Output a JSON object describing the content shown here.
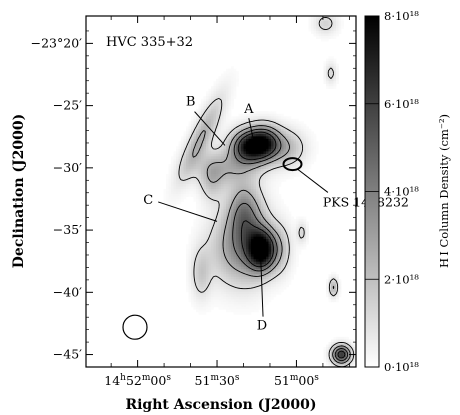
{
  "chart_data": {
    "type": "heatmap",
    "title": "HVC 335+32",
    "xlabel": "Right Ascension (J2000)",
    "ylabel": "Declination (J2000)",
    "colorbar_label": "H I Column Density (cm⁻²)",
    "x_ticks": [
      {
        "label": "14h52m00s",
        "ra_sec_after_14h51m": 60
      },
      {
        "label": "51m30s",
        "ra_sec_after_14h51m": 30
      },
      {
        "label": "51m00s",
        "ra_sec_after_14h51m": 0
      }
    ],
    "x_tick_parts": [
      {
        "parts": [
          {
            "t": "14"
          },
          {
            "t": "h",
            "sup": true
          },
          {
            "t": "52"
          },
          {
            "t": "m",
            "sup": true
          },
          {
            "t": "00"
          },
          {
            "t": "s",
            "sup": true
          }
        ]
      },
      {
        "parts": [
          {
            "t": "51"
          },
          {
            "t": "m",
            "sup": true
          },
          {
            "t": "30"
          },
          {
            "t": "s",
            "sup": true
          }
        ]
      },
      {
        "parts": [
          {
            "t": "51"
          },
          {
            "t": "m",
            "sup": true
          },
          {
            "t": "00"
          },
          {
            "t": "s",
            "sup": true
          }
        ]
      }
    ],
    "y_ticks": [
      {
        "label": "−23°20′",
        "dec_arcmin": -20
      },
      {
        "label": "−25′",
        "dec_arcmin": -25
      },
      {
        "label": "−30′",
        "dec_arcmin": -30
      },
      {
        "label": "−35′",
        "dec_arcmin": -35
      },
      {
        "label": "−40′",
        "dec_arcmin": -40
      },
      {
        "label": "−45′",
        "dec_arcmin": -45
      }
    ],
    "xlim_ra_sec_after_14h51m": [
      79.5,
      -22.5
    ],
    "ylim_dec_arcmin_after_23deg": [
      -17.8,
      -46
    ],
    "colorbar": {
      "range": [
        0,
        8e+18
      ],
      "ticks": [
        {
          "label": "0·10¹⁸",
          "value": 0
        },
        {
          "label": "2·10¹⁸",
          "value": 2e+18
        },
        {
          "label": "4·10¹⁸",
          "value": 4e+18
        },
        {
          "label": "6·10¹⁸",
          "value": 6e+18
        },
        {
          "label": "8·10¹⁸",
          "value": 8e+18
        }
      ],
      "colors": [
        "#ffffff",
        "#000000"
      ]
    },
    "contour_levels": [
      1e+18,
      2.5e+18,
      4e+18,
      5.5e+18
    ],
    "sources": [
      {
        "ra": 18,
        "dec": -28.3,
        "peak": 7e+18,
        "sra": 4.5,
        "sdec": 0.9,
        "rot": 0
      },
      {
        "ra": 12,
        "dec": -28.0,
        "peak": 6e+18,
        "sra": 4.0,
        "sdec": 0.9,
        "rot": 0
      },
      {
        "ra": 36,
        "dec": -27.6,
        "peak": 2.6e+18,
        "sra": 6.0,
        "sdec": 1.1,
        "rot": 20
      },
      {
        "ra": 4,
        "dec": -28.4,
        "peak": 2.2e+18,
        "sra": 5.0,
        "sdec": 1.0,
        "rot": 0
      },
      {
        "ra": 26,
        "dec": -30.0,
        "peak": 2.2e+18,
        "sra": 8.0,
        "sdec": 1.0,
        "rot": 0
      },
      {
        "ra": 32,
        "dec": -31.0,
        "peak": 1.6e+18,
        "sra": 3.0,
        "sdec": 1.2,
        "rot": 0
      },
      {
        "ra": 20,
        "dec": -33.4,
        "peak": 2.6e+18,
        "sra": 4.0,
        "sdec": 1.5,
        "rot": 0
      },
      {
        "ra": 13,
        "dec": -36.6,
        "peak": 8e+18,
        "sra": 3.5,
        "sdec": 1.1,
        "rot": 0
      },
      {
        "ra": 18,
        "dec": -35.8,
        "peak": 3.5e+18,
        "sra": 5.5,
        "sdec": 2.2,
        "rot": 0
      },
      {
        "ra": 26,
        "dec": -36.5,
        "peak": 1.8e+18,
        "sra": 6.0,
        "sdec": 2.0,
        "rot": 0
      },
      {
        "ra": 36,
        "dec": -38.5,
        "peak": 1.6e+18,
        "sra": 2.5,
        "sdec": 1.4,
        "rot": 0
      },
      {
        "ra": 6,
        "dec": -36.5,
        "peak": 1.5e+18,
        "sra": 3.0,
        "sdec": 1.4,
        "rot": 0
      },
      {
        "ra": -2,
        "dec": -35.2,
        "peak": 1.3e+18,
        "sra": 1.3,
        "sdec": 0.6,
        "rot": 0
      },
      {
        "ra": -13,
        "dec": -22.4,
        "peak": 1.3e+18,
        "sra": 1.4,
        "sdec": 0.6,
        "rot": 0
      },
      {
        "ra": -11,
        "dec": -18.4,
        "peak": 1.4e+18,
        "sra": 3.0,
        "sdec": 0.6,
        "rot": 0
      },
      {
        "ra": -14,
        "dec": -39.6,
        "peak": 2.6e+18,
        "sra": 1.1,
        "sdec": 0.5,
        "rot": 0
      },
      {
        "ra": -17,
        "dec": -45.0,
        "peak": 6.5e+18,
        "sra": 2.4,
        "sdec": 0.5,
        "rot": 0
      }
    ],
    "annotations": [
      {
        "label": "A",
        "ra": 18,
        "dec": -25.6
      },
      {
        "label": "B",
        "ra": 40,
        "dec": -25.0
      },
      {
        "label": "C",
        "ra": 56,
        "dec": -32.9
      },
      {
        "label": "D",
        "ra": 13,
        "dec": -43.0
      },
      {
        "label": "PKS 1448232",
        "ra": -10,
        "dec": -33.1
      }
    ],
    "source_marker": {
      "name": "PKS 1448232",
      "ra": 1.5,
      "dec": -29.7
    },
    "beam": {
      "ra": 61,
      "dec": -42.8
    }
  }
}
